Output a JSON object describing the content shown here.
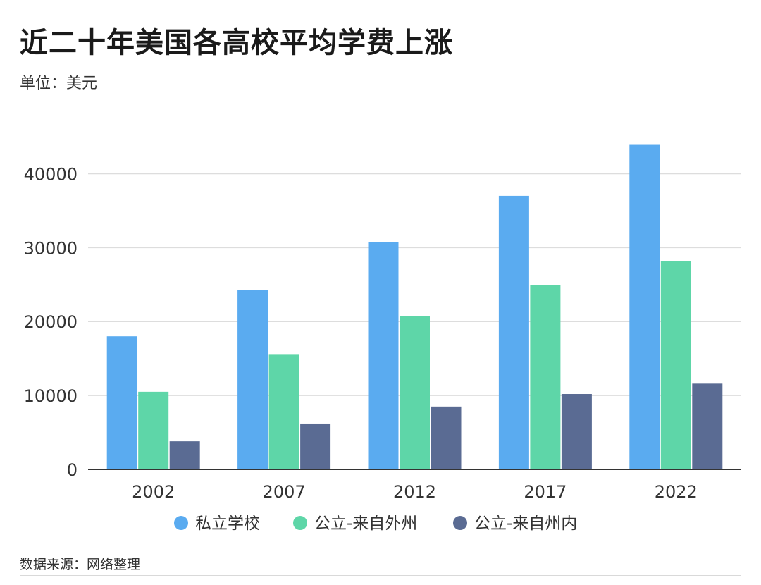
{
  "header": {
    "title": "近二十年美国各高校平均学费上涨",
    "unit": "单位：美元"
  },
  "footer": {
    "source": "数据来源：网络整理"
  },
  "chart_data": {
    "type": "bar",
    "title": "近二十年美国各高校平均学费上涨",
    "subtitle": "单位：美元",
    "xlabel": "",
    "ylabel": "",
    "categories": [
      "2002",
      "2007",
      "2012",
      "2017",
      "2022"
    ],
    "series": [
      {
        "name": "私立学校",
        "color": "#5aabf0",
        "values": [
          18000,
          24300,
          30700,
          37000,
          43900
        ]
      },
      {
        "name": "公立-来自外州",
        "color": "#5ed6a8",
        "values": [
          10500,
          15600,
          20700,
          24900,
          28200
        ]
      },
      {
        "name": "公立-来自州内",
        "color": "#5a6b93",
        "values": [
          3800,
          6200,
          8500,
          10200,
          11600
        ]
      }
    ],
    "ylim": [
      0,
      45000
    ],
    "yticks": [
      0,
      10000,
      20000,
      30000,
      40000
    ],
    "grid": true,
    "legend": "bottom"
  }
}
